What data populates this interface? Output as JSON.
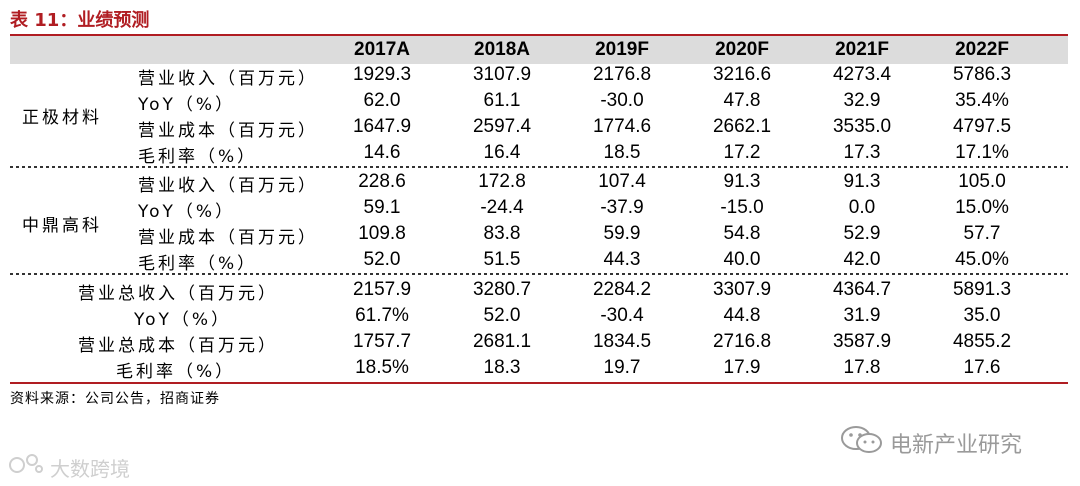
{
  "title": "表 11：业绩预测",
  "years": [
    "2017A",
    "2018A",
    "2019F",
    "2020F",
    "2021F",
    "2022F"
  ],
  "groups": [
    {
      "name": "正极材料",
      "rows": [
        {
          "label": "营业收入（百万元）",
          "values": [
            "1929.3",
            "3107.9",
            "2176.8",
            "3216.6",
            "4273.4",
            "5786.3"
          ]
        },
        {
          "label": "YoY（%）",
          "values": [
            "62.0",
            "61.1",
            "-30.0",
            "47.8",
            "32.9",
            "35.4%"
          ]
        },
        {
          "label": "营业成本（百万元）",
          "values": [
            "1647.9",
            "2597.4",
            "1774.6",
            "2662.1",
            "3535.0",
            "4797.5"
          ]
        },
        {
          "label": "毛利率（%）",
          "values": [
            "14.6",
            "16.4",
            "18.5",
            "17.2",
            "17.3",
            "17.1%"
          ]
        }
      ]
    },
    {
      "name": "中鼎高科",
      "rows": [
        {
          "label": "营业收入（百万元）",
          "values": [
            "228.6",
            "172.8",
            "107.4",
            "91.3",
            "91.3",
            "105.0"
          ]
        },
        {
          "label": "YoY（%）",
          "values": [
            "59.1",
            "-24.4",
            "-37.9",
            "-15.0",
            "0.0",
            "15.0%"
          ]
        },
        {
          "label": "营业成本（百万元）",
          "values": [
            "109.8",
            "83.8",
            "59.9",
            "54.8",
            "52.9",
            "57.7"
          ]
        },
        {
          "label": "毛利率（%）",
          "values": [
            "52.0",
            "51.5",
            "44.3",
            "40.0",
            "42.0",
            "45.0%"
          ]
        }
      ]
    },
    {
      "name": "",
      "rows": [
        {
          "label": "营业总收入（百万元）",
          "values": [
            "2157.9",
            "3280.7",
            "2284.2",
            "3307.9",
            "4364.7",
            "5891.3"
          ]
        },
        {
          "label": "YoY（%）",
          "values": [
            "61.7%",
            "52.0",
            "-30.4",
            "44.8",
            "31.9",
            "35.0"
          ]
        },
        {
          "label": "营业总成本（百万元）",
          "values": [
            "1757.7",
            "2681.1",
            "1834.5",
            "2716.8",
            "3587.9",
            "4855.2"
          ]
        },
        {
          "label": "毛利率（%）",
          "values": [
            "18.5%",
            "18.3",
            "19.7",
            "17.9",
            "17.8",
            "17.6"
          ]
        }
      ]
    }
  ],
  "source": "资料来源：公司公告，招商证券",
  "watermark_right": "电新产业研究",
  "watermark_left": "大数跨境",
  "colors": {
    "accent": "#b01d22",
    "header_bg": "#dcdcdc"
  }
}
